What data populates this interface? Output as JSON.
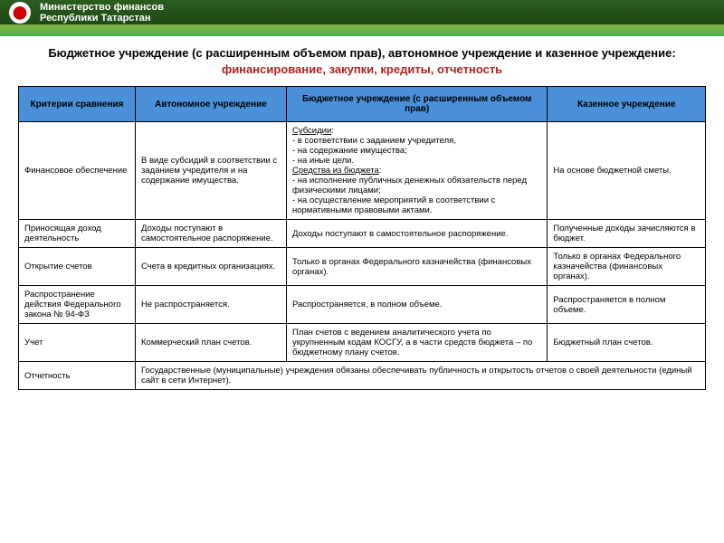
{
  "header": {
    "line1": "Министерство финансов",
    "line2": "Республики Татарстан"
  },
  "title": {
    "black": "Бюджетное учреждение (с расширенным объемом прав), автономное учреждение и казенное учреждение: ",
    "red": "финансирование, закупки, кредиты, отчетность"
  },
  "headers": {
    "h1": "Критерии сравнения",
    "h2": "Автономное учреждение",
    "h3": "Бюджетное учреждение (с расширенным объемом прав)",
    "h4": "Казенное учреждение"
  },
  "rows": {
    "r1": {
      "crit": "Финансовое обеспечение",
      "c1": "В виде субсидий в соответствии с заданием учредителя и на содержание имущества.",
      "c2_sub": "Субсидии",
      "c2_sub_items": ":\n- в соответствии с заданием учредителя,\n- на содержание имущества;\n- на иные цели.",
      "c2_sred": "Средства из бюджета",
      "c2_sred_items": ":\n- на исполнение публичных денежных обязательств перед физическими лицами;\n- на осуществление мероприятий в соответствии с нормативными правовыми актами.",
      "c3": "На основе бюджетной сметы."
    },
    "r2": {
      "crit": "Приносящая доход деятельность",
      "c1": "Доходы поступают в самостоятельное распоряжение.",
      "c2": "Доходы поступают в самостоятельное распоряжение.",
      "c3": "Полученные доходы зачисляются в бюджет."
    },
    "r3": {
      "crit": "Открытие счетов",
      "c1": "Счета в кредитных организациях.",
      "c2": "Только в органах Федерального казначейства (финансовых органах).",
      "c3": "Только в органах Федерального казначейства (финансовых органах)."
    },
    "r4": {
      "crit": "Распространение действия Федерального закона № 94-ФЗ",
      "c1": "Не распространяется.",
      "c2": "Распространяется, в полном объеме.",
      "c3": "Распространяется в полном объеме."
    },
    "r5": {
      "crit": "Учет",
      "c1": "Коммерческий план счетов.",
      "c2": "План счетов с ведением аналитического учета по укрупненным кодам КОСГУ, а в части средств бюджета – по бюджетному плану счетов.",
      "c3": "Бюджетный план счетов."
    },
    "r6": {
      "crit": "Отчетность",
      "merged": "Государственные (муниципальные) учреждения обязаны обеспечивать публичность и открытость отчетов о своей деятельности (единый сайт в сети Интернет)."
    }
  }
}
